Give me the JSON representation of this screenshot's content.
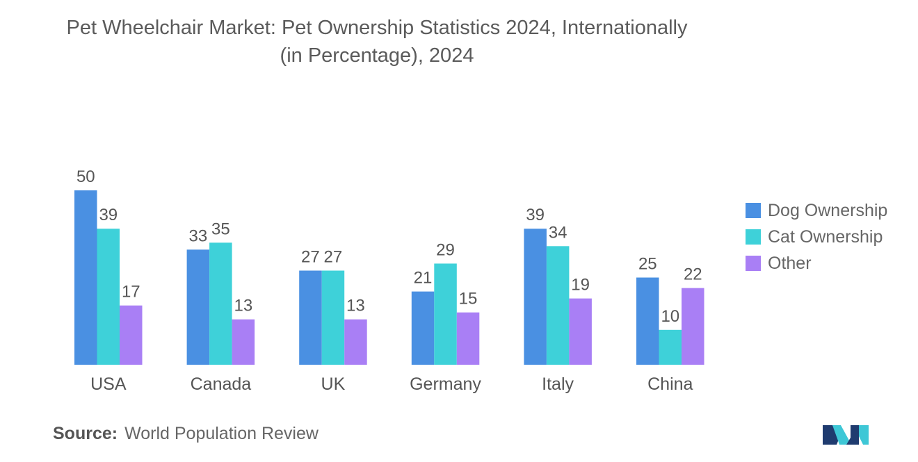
{
  "title": {
    "line1": "Pet Wheelchair Market: Pet Ownership Statistics 2024, Internationally",
    "line2": "(in Percentage), 2024"
  },
  "chart_data": {
    "type": "bar",
    "title": "Pet Wheelchair Market: Pet Ownership Statistics 2024, Internationally (in Percentage), 2024",
    "categories": [
      "USA",
      "Canada",
      "UK",
      "Germany",
      "Italy",
      "China"
    ],
    "series": [
      {
        "name": "Dog Ownership",
        "color": "#4a90e2",
        "values": [
          50,
          33,
          27,
          21,
          39,
          25
        ]
      },
      {
        "name": "Cat Ownership",
        "color": "#3ed1d9",
        "values": [
          39,
          35,
          27,
          29,
          34,
          10
        ]
      },
      {
        "name": "Other",
        "color": "#a97ff5",
        "values": [
          17,
          13,
          13,
          15,
          19,
          22
        ]
      }
    ],
    "ylim": [
      0,
      50
    ],
    "xlabel": "",
    "ylabel": "",
    "grid": false,
    "legend": "right"
  },
  "source": {
    "label": "Source:",
    "text": "World Population Review"
  },
  "logo": {
    "icon": "mordor-logo-icon",
    "colors": [
      "#1f3b6f",
      "#3ec7d6"
    ]
  }
}
